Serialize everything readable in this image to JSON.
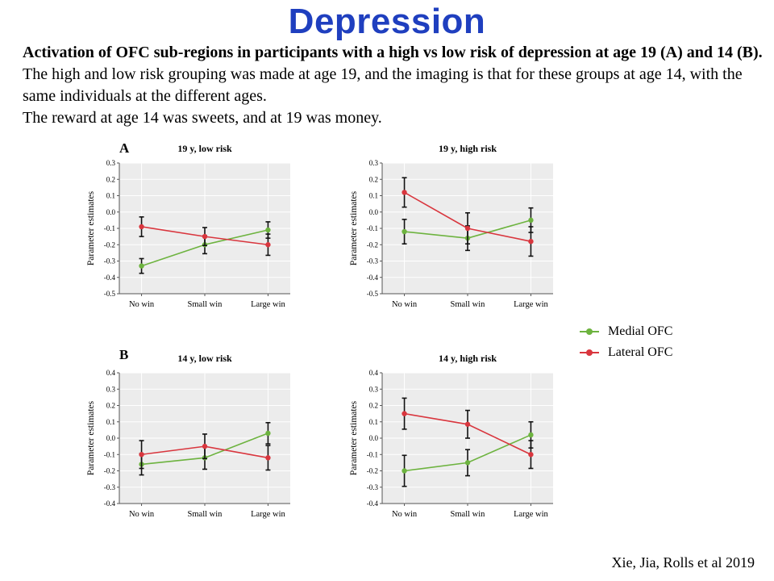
{
  "title": "Depression",
  "caption": {
    "bold": "Activation of OFC sub-regions in participants with a high vs low risk of depression at age 19 (A) and 14 (B).",
    "rest": " The high and low risk grouping was made at age 19, and the imaging is that for these groups at age 14, with the same individuals at the different ages.",
    "line2": "The reward at age 14 was sweets, and at 19 was money."
  },
  "panel_labels": {
    "a": "A",
    "b": "B"
  },
  "legend": [
    {
      "label": "Medial OFC",
      "color": "#6db33f"
    },
    {
      "label": "Lateral OFC",
      "color": "#d9363e"
    }
  ],
  "credit": "Xie, Jia, Rolls et al 2019",
  "chart_data": [
    {
      "type": "line",
      "title": "19 y, low risk",
      "ylabel": "Parameter estimates",
      "categories": [
        "No win",
        "Small win",
        "Large win"
      ],
      "ylim": [
        -0.5,
        0.3
      ],
      "yticks": [
        "0.3",
        "0.2",
        "0.1",
        "0.0",
        "-0.1",
        "-0.2",
        "-0.3",
        "-0.4",
        "-0.5"
      ],
      "grid": true,
      "series": [
        {
          "name": "Medial OFC",
          "color": "#6db33f",
          "values": [
            -0.33,
            -0.2,
            -0.11
          ],
          "err": [
            0.045,
            0.055,
            0.05
          ]
        },
        {
          "name": "Lateral OFC",
          "color": "#d9363e",
          "values": [
            -0.09,
            -0.15,
            -0.2
          ],
          "err": [
            0.06,
            0.055,
            0.065
          ]
        }
      ]
    },
    {
      "type": "line",
      "title": "19 y, high risk",
      "ylabel": "Parameter estimates",
      "categories": [
        "No win",
        "Small win",
        "Large win"
      ],
      "ylim": [
        -0.5,
        0.3
      ],
      "yticks": [
        "0.3",
        "0.2",
        "0.1",
        "0.0",
        "-0.1",
        "-0.2",
        "-0.3",
        "-0.4",
        "-0.5"
      ],
      "grid": true,
      "series": [
        {
          "name": "Medial OFC",
          "color": "#6db33f",
          "values": [
            -0.12,
            -0.16,
            -0.05
          ],
          "err": [
            0.075,
            0.075,
            0.075
          ]
        },
        {
          "name": "Lateral OFC",
          "color": "#d9363e",
          "values": [
            0.12,
            -0.1,
            -0.18
          ],
          "err": [
            0.09,
            0.095,
            0.09
          ]
        }
      ]
    },
    {
      "type": "line",
      "title": "14 y, low risk",
      "ylabel": "Parameter estimates",
      "categories": [
        "No win",
        "Small win",
        "Large win"
      ],
      "ylim": [
        -0.4,
        0.4
      ],
      "yticks": [
        "0.4",
        "0.3",
        "0.2",
        "0.1",
        "0.0",
        "-0.1",
        "-0.2",
        "-0.3",
        "-0.4"
      ],
      "grid": true,
      "series": [
        {
          "name": "Medial OFC",
          "color": "#6db33f",
          "values": [
            -0.16,
            -0.12,
            0.03
          ],
          "err": [
            0.065,
            0.07,
            0.065
          ]
        },
        {
          "name": "Lateral OFC",
          "color": "#d9363e",
          "values": [
            -0.1,
            -0.05,
            -0.12
          ],
          "err": [
            0.085,
            0.075,
            0.075
          ]
        }
      ]
    },
    {
      "type": "line",
      "title": "14 y, high risk",
      "ylabel": "Parameter estimates",
      "categories": [
        "No win",
        "Small win",
        "Large win"
      ],
      "ylim": [
        -0.4,
        0.4
      ],
      "yticks": [
        "0.4",
        "0.3",
        "0.2",
        "0.1",
        "0.0",
        "-0.1",
        "-0.2",
        "-0.3",
        "-0.4"
      ],
      "grid": true,
      "series": [
        {
          "name": "Medial OFC",
          "color": "#6db33f",
          "values": [
            -0.2,
            -0.15,
            0.02
          ],
          "err": [
            0.095,
            0.08,
            0.08
          ]
        },
        {
          "name": "Lateral OFC",
          "color": "#d9363e",
          "values": [
            0.15,
            0.085,
            -0.1
          ],
          "err": [
            0.095,
            0.085,
            0.085
          ]
        }
      ]
    }
  ]
}
